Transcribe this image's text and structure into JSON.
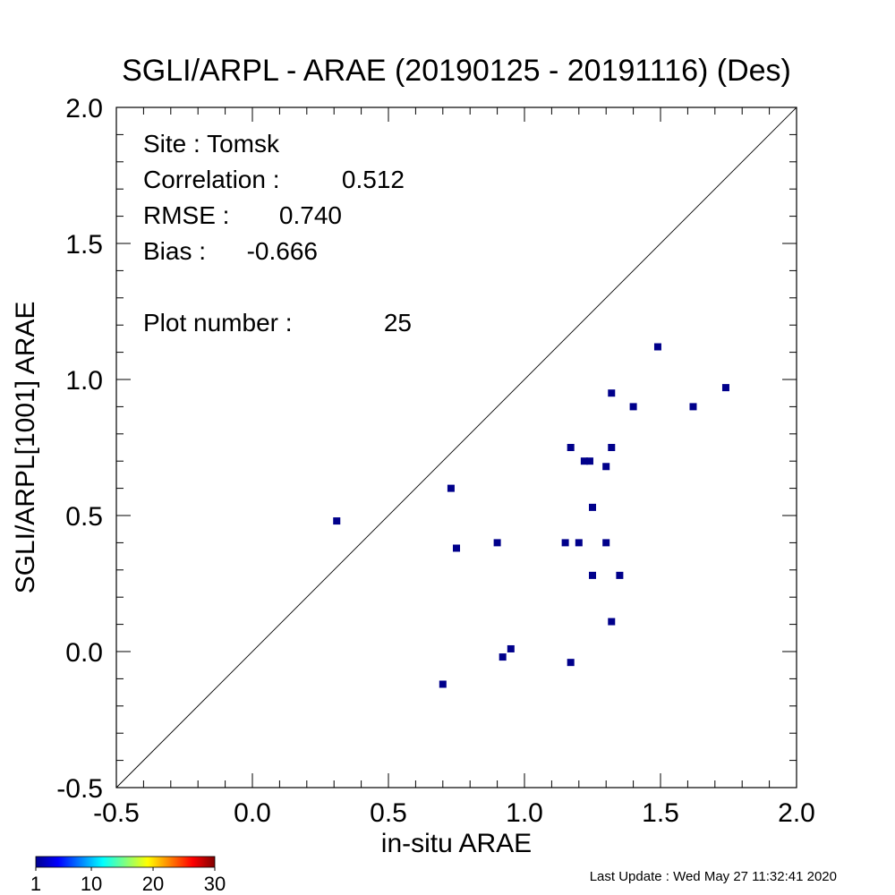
{
  "chart_data": {
    "type": "scatter",
    "title": "SGLI/ARPL - ARAE (20190125 - 20191116) (Des)",
    "xlabel": "in-situ ARAE",
    "ylabel": "SGLI/ARPL[1001]    ARAE",
    "xlim": [
      -0.5,
      2.0
    ],
    "ylim": [
      -0.5,
      2.0
    ],
    "x_ticks": [
      "-0.5",
      "0.0",
      "0.5",
      "1.0",
      "1.5",
      "2.0"
    ],
    "y_ticks": [
      "-0.5",
      "0.0",
      "0.5",
      "1.0",
      "1.5",
      "2.0"
    ],
    "grid": false,
    "reference_line": "1:1",
    "point_color": "#00008b",
    "points": [
      {
        "x": 0.31,
        "y": 0.48
      },
      {
        "x": 0.7,
        "y": -0.12
      },
      {
        "x": 0.73,
        "y": 0.6
      },
      {
        "x": 0.75,
        "y": 0.38
      },
      {
        "x": 0.9,
        "y": 0.4
      },
      {
        "x": 0.92,
        "y": -0.02
      },
      {
        "x": 0.95,
        "y": 0.01
      },
      {
        "x": 1.15,
        "y": 0.4
      },
      {
        "x": 1.17,
        "y": 0.75
      },
      {
        "x": 1.17,
        "y": -0.04
      },
      {
        "x": 1.2,
        "y": 0.4
      },
      {
        "x": 1.22,
        "y": 0.7
      },
      {
        "x": 1.24,
        "y": 0.7
      },
      {
        "x": 1.25,
        "y": 0.53
      },
      {
        "x": 1.25,
        "y": 0.28
      },
      {
        "x": 1.3,
        "y": 0.68
      },
      {
        "x": 1.3,
        "y": 0.4
      },
      {
        "x": 1.32,
        "y": 0.95
      },
      {
        "x": 1.32,
        "y": 0.75
      },
      {
        "x": 1.32,
        "y": 0.11
      },
      {
        "x": 1.35,
        "y": 0.28
      },
      {
        "x": 1.4,
        "y": 0.9
      },
      {
        "x": 1.49,
        "y": 1.12
      },
      {
        "x": 1.62,
        "y": 0.9
      },
      {
        "x": 1.74,
        "y": 0.97
      }
    ],
    "stats": [
      {
        "label": "Site : Tomsk",
        "value": ""
      },
      {
        "label": "Correlation :",
        "value": "0.512"
      },
      {
        "label": "RMSE :",
        "value": "0.740"
      },
      {
        "label": "Bias :",
        "value": "-0.666"
      },
      {
        "label": "Plot number :",
        "value": "25"
      }
    ],
    "colorbar": {
      "ticks": [
        "1",
        "10",
        "20",
        "30"
      ],
      "colors": [
        "#00008f",
        "#0000ff",
        "#0080ff",
        "#00ffff",
        "#80ff80",
        "#ffff00",
        "#ff8000",
        "#ff0000",
        "#800000"
      ]
    }
  },
  "footer": {
    "last_update": "Last Update : Wed May 27 11:32:41 2020"
  }
}
